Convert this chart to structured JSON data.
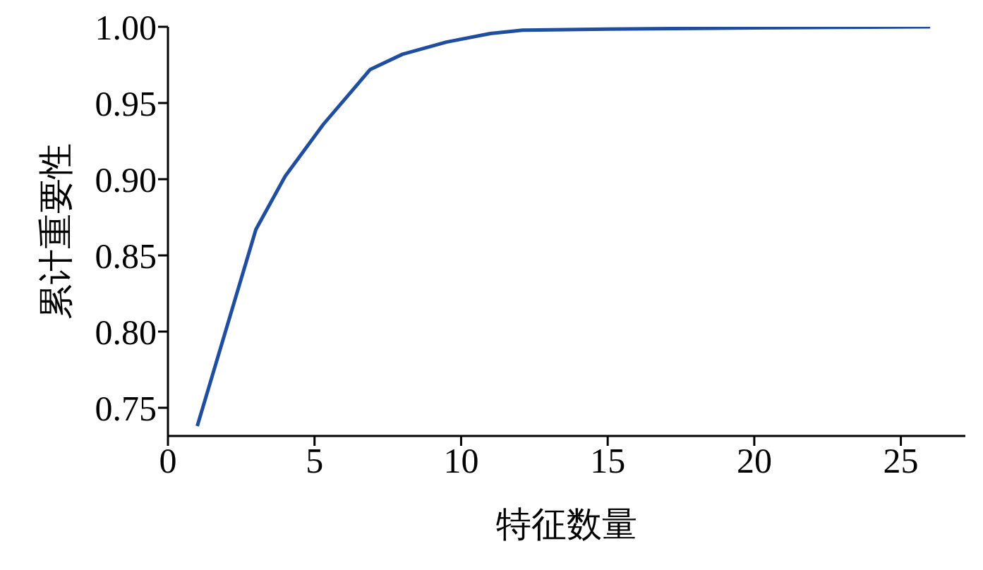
{
  "chart_data": {
    "type": "line",
    "xlabel": "特征数量",
    "ylabel": "累计重要性",
    "x": [
      1,
      3,
      4,
      5.3,
      6.9,
      8,
      9.5,
      11,
      12.1,
      15,
      20,
      26
    ],
    "series": [
      {
        "color": "#1f4ea0",
        "values": [
          0.738,
          0.867,
          0.902,
          0.936,
          0.972,
          0.982,
          0.99,
          0.9956,
          0.9978,
          0.9985,
          0.9993,
          1.0
        ]
      }
    ],
    "xlim": [
      0,
      27.2
    ],
    "xticks": [
      0,
      5,
      10,
      15,
      20,
      25
    ],
    "ylim": [
      0.7315,
      1.0
    ],
    "yticks": [
      {
        "value": 0.75,
        "label": "0.75"
      },
      {
        "value": 0.8,
        "label": "0.80"
      },
      {
        "value": 0.85,
        "label": "0.85"
      },
      {
        "value": 0.9,
        "label": "0.90"
      },
      {
        "value": 0.95,
        "label": "0.95"
      },
      {
        "value": 1.0,
        "label": "1.00"
      }
    ],
    "grid": false,
    "legend": false,
    "marker": "none",
    "line_style": "solid"
  }
}
